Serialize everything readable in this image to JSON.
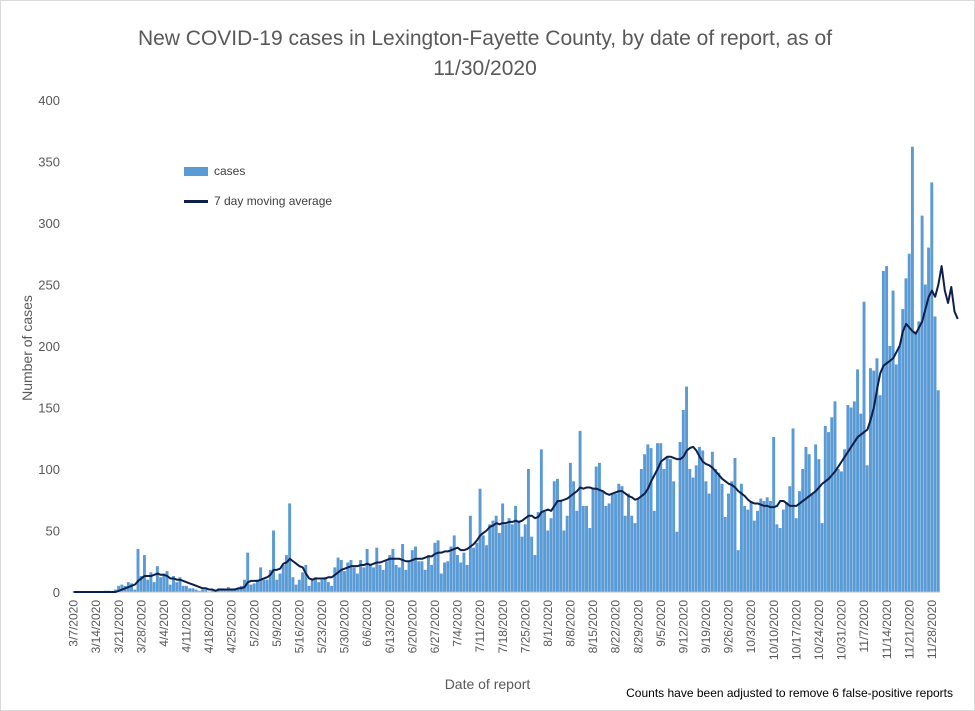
{
  "chart_data": {
    "type": "bar",
    "title": "New COVID-19 cases in Lexington-Fayette County, by date of report, as of 11/30/2020",
    "xlabel": "Date of report",
    "ylabel": "Number of cases",
    "ylim": [
      0,
      400
    ],
    "yticks": [
      0,
      50,
      100,
      150,
      200,
      250,
      300,
      350,
      400
    ],
    "start_date": "2020-03-07",
    "xtick_labels": [
      "3/7/2020",
      "3/14/2020",
      "3/21/2020",
      "3/28/2020",
      "4/4/2020",
      "4/11/2020",
      "4/18/2020",
      "4/25/2020",
      "5/2/2020",
      "5/9/2020",
      "5/16/2020",
      "5/23/2020",
      "5/30/2020",
      "6/6/2020",
      "6/13/2020",
      "6/20/2020",
      "6/27/2020",
      "7/4/2020",
      "7/11/2020",
      "7/18/2020",
      "7/25/2020",
      "8/1/2020",
      "8/8/2020",
      "8/15/2020",
      "8/22/2020",
      "8/29/2020",
      "9/5/2020",
      "9/12/2020",
      "9/19/2020",
      "9/26/2020",
      "10/3/2020",
      "10/10/2020",
      "10/17/2020",
      "10/24/2020",
      "10/31/2020",
      "11/7/2020",
      "11/14/2020",
      "11/21/2020",
      "11/28/2020"
    ],
    "legend_position": "upper-left",
    "gridlines": false,
    "series": [
      {
        "name": "cases",
        "type": "bar",
        "color": "#5b9bd5",
        "values": [
          0,
          0,
          0,
          0,
          0,
          0,
          0,
          0,
          0,
          0,
          1,
          1,
          0,
          2,
          5,
          6,
          5,
          8,
          7,
          2,
          35,
          13,
          30,
          10,
          16,
          8,
          21,
          12,
          15,
          17,
          6,
          13,
          8,
          12,
          5,
          5,
          3,
          3,
          2,
          1,
          2,
          2,
          0,
          1,
          1,
          3,
          3,
          2,
          4,
          2,
          3,
          3,
          5,
          10,
          32,
          6,
          7,
          10,
          20,
          10,
          10,
          18,
          50,
          10,
          15,
          22,
          30,
          72,
          12,
          6,
          10,
          16,
          22,
          5,
          10,
          12,
          8,
          10,
          12,
          8,
          5,
          20,
          28,
          26,
          17,
          24,
          26,
          20,
          15,
          26,
          20,
          35,
          22,
          20,
          36,
          22,
          18,
          25,
          30,
          35,
          22,
          20,
          39,
          18,
          25,
          34,
          37,
          25,
          25,
          18,
          30,
          22,
          40,
          42,
          15,
          24,
          25,
          37,
          46,
          30,
          24,
          32,
          22,
          62,
          36,
          40,
          84,
          46,
          38,
          55,
          58,
          62,
          48,
          72,
          55,
          60,
          55,
          70,
          58,
          45,
          55,
          100,
          45,
          30,
          65,
          116,
          65,
          50,
          60,
          90,
          92,
          75,
          50,
          62,
          105,
          90,
          66,
          131,
          70,
          70,
          52,
          84,
          102,
          105,
          82,
          70,
          72,
          80,
          80,
          88,
          86,
          62,
          80,
          62,
          56,
          76,
          100,
          112,
          120,
          117,
          66,
          121,
          121,
          100,
          110,
          108,
          90,
          49,
          122,
          148,
          167,
          100,
          93,
          103,
          118,
          115,
          90,
          80,
          114,
          100,
          97,
          88,
          61,
          80,
          90,
          109,
          34,
          88,
          70,
          67,
          74,
          58,
          66,
          76,
          74,
          77,
          74,
          126,
          55,
          52,
          67,
          73,
          86,
          133,
          60,
          82,
          100,
          118,
          112,
          80,
          120,
          108,
          56,
          135,
          130,
          142,
          155,
          100,
          98,
          116,
          152,
          150,
          155,
          181,
          145,
          236,
          103,
          182,
          180,
          190,
          160,
          261,
          265,
          200,
          245,
          185,
          200,
          230,
          255,
          275,
          362,
          212,
          220,
          306,
          250,
          280,
          333,
          224,
          164
        ]
      },
      {
        "name": "7 day moving average",
        "type": "line",
        "color": "#0f1f4b",
        "values": [
          0,
          0,
          0,
          0,
          0,
          0,
          0,
          0,
          0,
          0,
          0,
          0,
          0,
          0,
          1,
          2,
          3,
          4,
          5,
          6,
          9,
          11,
          13,
          13,
          13,
          14,
          15,
          14,
          14,
          13,
          11,
          11,
          10,
          10,
          9,
          8,
          7,
          6,
          5,
          4,
          3,
          3,
          2,
          2,
          1,
          2,
          2,
          2,
          2,
          2,
          2,
          3,
          3,
          4,
          8,
          9,
          9,
          9,
          10,
          11,
          12,
          14,
          18,
          18,
          19,
          23,
          24,
          27,
          25,
          23,
          21,
          20,
          15,
          11,
          10,
          11,
          11,
          11,
          11,
          12,
          12,
          14,
          16,
          18,
          19,
          20,
          21,
          21,
          21,
          22,
          22,
          23,
          22,
          23,
          24,
          24,
          25,
          26,
          27,
          27,
          27,
          27,
          26,
          25,
          25,
          26,
          27,
          27,
          27,
          28,
          29,
          29,
          31,
          32,
          32,
          33,
          33,
          34,
          35,
          36,
          34,
          34,
          35,
          37,
          39,
          42,
          46,
          48,
          50,
          53,
          54,
          56,
          55,
          56,
          56,
          57,
          57,
          58,
          57,
          58,
          60,
          62,
          62,
          60,
          61,
          65,
          66,
          67,
          66,
          70,
          74,
          74,
          75,
          76,
          78,
          80,
          82,
          85,
          84,
          85,
          85,
          84,
          84,
          83,
          82,
          80,
          79,
          80,
          81,
          82,
          82,
          80,
          78,
          77,
          75,
          76,
          78,
          80,
          84,
          90,
          95,
          100,
          106,
          108,
          110,
          110,
          109,
          108,
          108,
          110,
          115,
          117,
          118,
          115,
          110,
          106,
          104,
          103,
          101,
          98,
          95,
          92,
          90,
          88,
          87,
          85,
          82,
          80,
          78,
          75,
          73,
          72,
          72,
          71,
          70,
          70,
          69,
          69,
          70,
          74,
          74,
          72,
          70,
          70,
          70,
          72,
          74,
          76,
          78,
          80,
          82,
          85,
          88,
          90,
          92,
          95,
          98,
          102,
          106,
          110,
          114,
          118,
          122,
          126,
          128,
          130,
          132,
          140,
          150,
          165,
          178,
          184,
          186,
          188,
          190,
          195,
          200,
          212,
          218,
          215,
          212,
          210,
          215,
          220,
          230,
          240,
          245,
          240,
          250,
          265,
          245,
          235,
          248,
          228,
          222
        ]
      }
    ]
  },
  "footnote": "Counts have been adjusted to remove 6 false-positive reports"
}
